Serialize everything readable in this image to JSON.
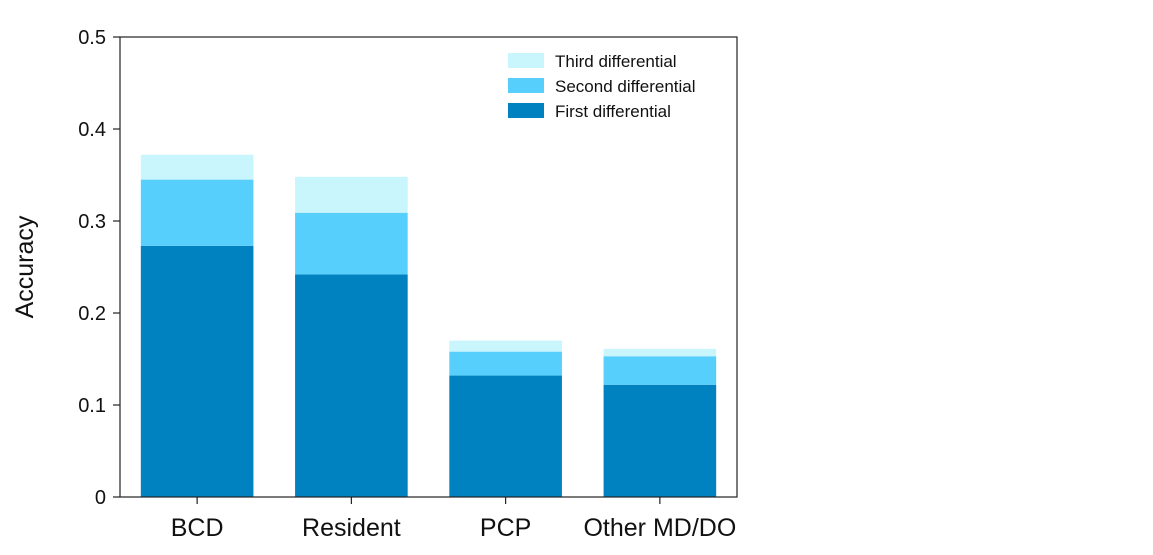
{
  "chart_data": {
    "type": "bar",
    "stacked": true,
    "categories": [
      "BCD",
      "Resident",
      "PCP",
      "Other MD/DO"
    ],
    "series": [
      {
        "name": "First differential",
        "values": [
          0.273,
          0.242,
          0.132,
          0.122
        ],
        "color": "#0081c0"
      },
      {
        "name": "Second differential",
        "values": [
          0.072,
          0.067,
          0.026,
          0.031
        ],
        "color": "#57cffc"
      },
      {
        "name": "Third differential",
        "values": [
          0.027,
          0.039,
          0.012,
          0.008
        ],
        "color": "#c9f5fd"
      }
    ],
    "ylabel": "Accuracy",
    "xlabel": "",
    "ylim": [
      0,
      0.5
    ],
    "yticks": [
      0,
      0.1,
      0.2,
      0.3,
      0.4,
      0.5
    ],
    "ytick_labels": [
      "0",
      "0.1",
      "0.2",
      "0.3",
      "0.4",
      "0.5"
    ],
    "legend_position": "top-right",
    "legend_order": [
      "Third differential",
      "Second differential",
      "First differential"
    ],
    "grid": false
  }
}
